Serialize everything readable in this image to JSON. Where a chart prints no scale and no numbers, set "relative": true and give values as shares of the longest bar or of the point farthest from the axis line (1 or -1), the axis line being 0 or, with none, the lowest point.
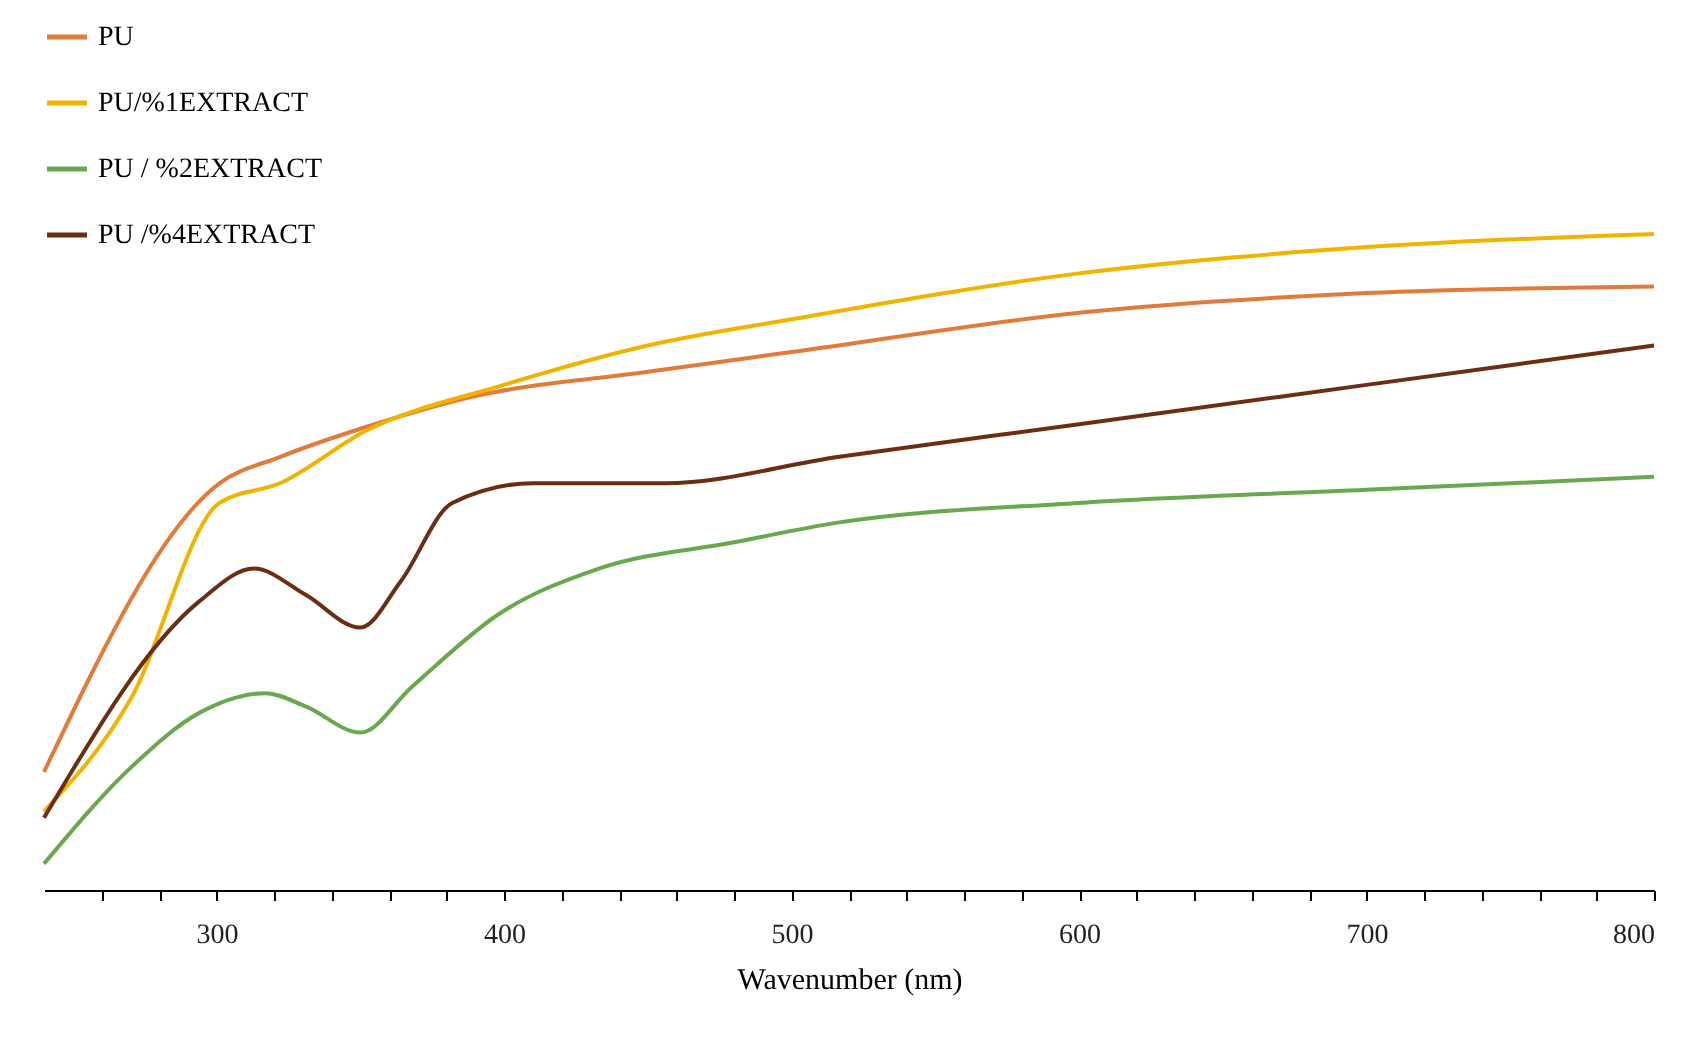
{
  "chart_data": {
    "type": "line",
    "relative": true,
    "xlabel": "Wavenumber (nm)",
    "xlim": [
      240,
      800
    ],
    "xticks": [
      {
        "value": 260,
        "label": null
      },
      {
        "value": 280,
        "label": null
      },
      300,
      {
        "value": 320,
        "label": null
      },
      {
        "value": 340,
        "label": null
      },
      {
        "value": 360,
        "label": null
      },
      {
        "value": 380,
        "label": null
      },
      400,
      {
        "value": 420,
        "label": null
      },
      {
        "value": 440,
        "label": null
      },
      {
        "value": 460,
        "label": null
      },
      {
        "value": 480,
        "label": null
      },
      500,
      {
        "value": 520,
        "label": null
      },
      {
        "value": 540,
        "label": null
      },
      {
        "value": 560,
        "label": null
      },
      {
        "value": 580,
        "label": null
      },
      600,
      {
        "value": 620,
        "label": null
      },
      {
        "value": 640,
        "label": null
      },
      {
        "value": 660,
        "label": null
      },
      {
        "value": 680,
        "label": null
      },
      700,
      {
        "value": 720,
        "label": null
      },
      {
        "value": 740,
        "label": null
      },
      {
        "value": 760,
        "label": null
      },
      {
        "value": 780,
        "label": null
      },
      800
    ],
    "grid": false,
    "legend": "top left",
    "marker": "none",
    "line_style": "solid",
    "series": [
      {
        "name": "PU",
        "color": "#e07b39",
        "x": [
          240,
          301,
          322,
          355,
          387,
          450,
          500,
          600,
          700,
          800
        ],
        "values": [
          0.18,
          0.62,
          0.66,
          0.71,
          0.75,
          0.79,
          0.82,
          0.88,
          0.91,
          0.92
        ]
      },
      {
        "name": "PU/%1EXTRACT",
        "color": "#f0b400",
        "x": [
          240,
          270,
          301,
          322,
          352,
          400,
          450,
          500,
          600,
          700,
          800
        ],
        "values": [
          0.12,
          0.29,
          0.59,
          0.62,
          0.7,
          0.77,
          0.83,
          0.87,
          0.94,
          0.98,
          1
        ]
      },
      {
        "name": "PU / %2EXTRACT",
        "color": "#6aa84f",
        "x": [
          240,
          271,
          294,
          317,
          331,
          350,
          368,
          398,
          433,
          480,
          516,
          600,
          700,
          800
        ],
        "values": [
          0.04,
          0.19,
          0.27,
          0.3,
          0.28,
          0.24,
          0.31,
          0.42,
          0.49,
          0.53,
          0.56,
          0.59,
          0.61,
          0.63
        ]
      },
      {
        "name": "PU /%4EXTRACT",
        "color": "#6b2e13",
        "x": [
          240,
          294,
          313,
          331,
          350,
          364,
          382,
          410,
          456,
          516,
          600,
          700,
          800
        ],
        "values": [
          0.11,
          0.44,
          0.49,
          0.45,
          0.4,
          0.47,
          0.59,
          0.62,
          0.62,
          0.66,
          0.71,
          0.77,
          0.83
        ]
      }
    ]
  }
}
